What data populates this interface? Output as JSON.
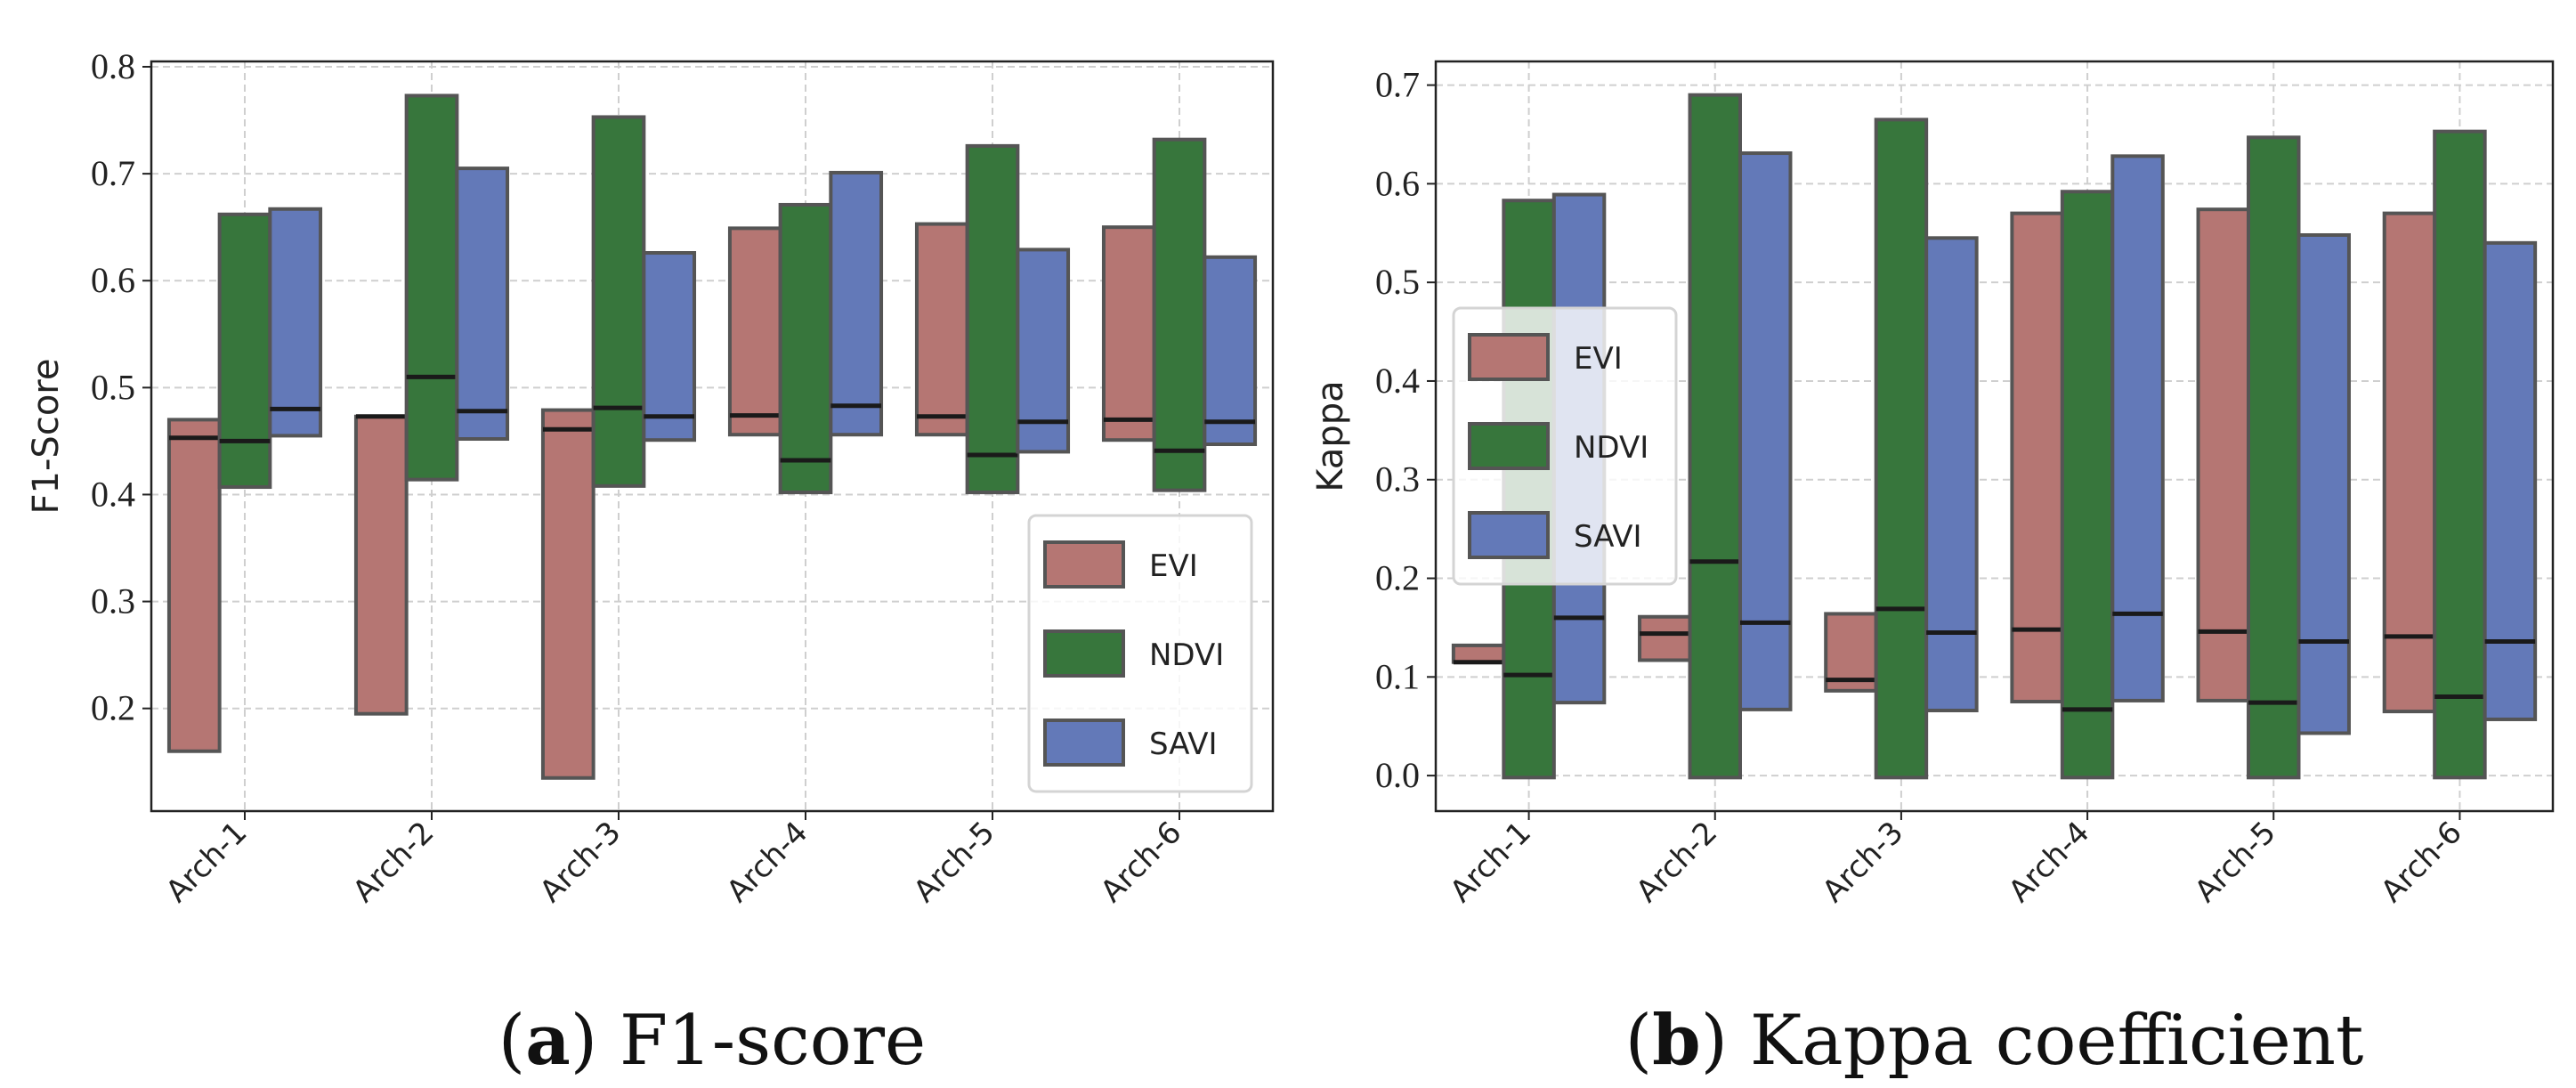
{
  "chart_data": [
    {
      "type": "bar",
      "subtype": "floating-range-with-median",
      "caption_letter": "a",
      "caption_text": "F1-score",
      "ylabel": "F1-Score",
      "xlabel": "",
      "ylim": [
        0.104,
        0.805
      ],
      "yticks": [
        "0.2",
        "0.3",
        "0.4",
        "0.5",
        "0.6",
        "0.7",
        "0.8"
      ],
      "grid": true,
      "legend_position": "lower-right",
      "categories": [
        "Arch-1",
        "Arch-2",
        "Arch-3",
        "Arch-4",
        "Arch-5",
        "Arch-6"
      ],
      "series": [
        {
          "name": "EVI",
          "color": "#b57673",
          "low": [
            0.16,
            0.195,
            0.135,
            0.456,
            0.456,
            0.451
          ],
          "high": [
            0.47,
            0.473,
            0.479,
            0.649,
            0.653,
            0.65
          ],
          "median": [
            0.453,
            0.473,
            0.461,
            0.474,
            0.473,
            0.47
          ]
        },
        {
          "name": "NDVI",
          "color": "#37763c",
          "low": [
            0.407,
            0.414,
            0.408,
            0.402,
            0.402,
            0.404
          ],
          "high": [
            0.662,
            0.773,
            0.753,
            0.671,
            0.726,
            0.732
          ],
          "median": [
            0.45,
            0.51,
            0.481,
            0.432,
            0.437,
            0.441
          ]
        },
        {
          "name": "SAVI",
          "color": "#6379b8",
          "low": [
            0.455,
            0.452,
            0.451,
            0.456,
            0.44,
            0.447
          ],
          "high": [
            0.667,
            0.705,
            0.626,
            0.701,
            0.629,
            0.622
          ],
          "median": [
            0.48,
            0.478,
            0.473,
            0.483,
            0.468,
            0.468
          ]
        }
      ]
    },
    {
      "type": "bar",
      "subtype": "floating-range-with-median",
      "caption_letter": "b",
      "caption_text": "Kappa coefficient",
      "ylabel": "Kappa",
      "xlabel": "",
      "ylim": [
        -0.036,
        0.724
      ],
      "yticks": [
        "0.0",
        "0.1",
        "0.2",
        "0.3",
        "0.4",
        "0.5",
        "0.6",
        "0.7"
      ],
      "grid": true,
      "legend_position": "center-left",
      "categories": [
        "Arch-1",
        "Arch-2",
        "Arch-3",
        "Arch-4",
        "Arch-5",
        "Arch-6"
      ],
      "series": [
        {
          "name": "EVI",
          "color": "#b57673",
          "low": [
            0.115,
            0.117,
            0.086,
            0.075,
            0.076,
            0.065
          ],
          "high": [
            0.132,
            0.161,
            0.164,
            0.57,
            0.574,
            0.57
          ],
          "median": [
            0.115,
            0.144,
            0.097,
            0.148,
            0.146,
            0.141
          ]
        },
        {
          "name": "NDVI",
          "color": "#37763c",
          "low": [
            -0.002,
            -0.002,
            -0.002,
            -0.002,
            -0.002,
            -0.002
          ],
          "high": [
            0.583,
            0.69,
            0.665,
            0.592,
            0.647,
            0.653
          ],
          "median": [
            0.102,
            0.217,
            0.169,
            0.067,
            0.074,
            0.08
          ]
        },
        {
          "name": "SAVI",
          "color": "#6379b8",
          "low": [
            0.074,
            0.067,
            0.066,
            0.076,
            0.043,
            0.057
          ],
          "high": [
            0.589,
            0.631,
            0.545,
            0.628,
            0.548,
            0.54
          ],
          "median": [
            0.16,
            0.155,
            0.145,
            0.164,
            0.136,
            0.136
          ]
        }
      ]
    }
  ]
}
